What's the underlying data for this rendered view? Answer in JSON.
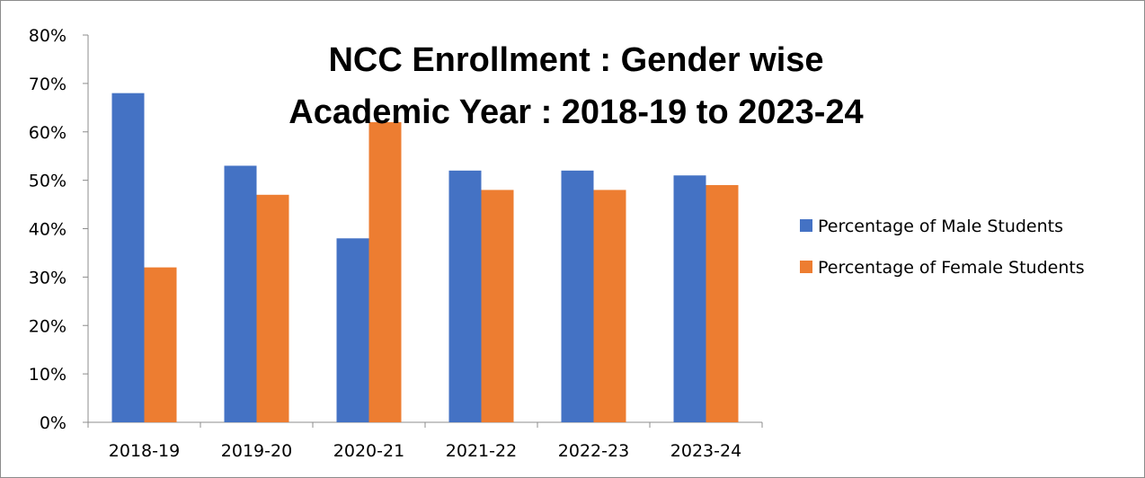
{
  "chart_data": {
    "type": "bar",
    "title_lines": [
      "NCC Enrollment : Gender wise",
      "Academic Year : 2018-19 to 2023-24"
    ],
    "categories": [
      "2018-19",
      "2019-20",
      "2020-21",
      "2021-22",
      "2022-23",
      "2023-24"
    ],
    "series": [
      {
        "name": "Percentage of Male Students",
        "color": "#4472C4",
        "values": [
          68,
          53,
          38,
          52,
          52,
          51
        ]
      },
      {
        "name": "Percentage of Female Students",
        "color": "#ED7D31",
        "values": [
          32,
          47,
          62,
          48,
          48,
          49
        ]
      }
    ],
    "y_ticks": [
      "0%",
      "10%",
      "20%",
      "30%",
      "40%",
      "50%",
      "60%",
      "70%",
      "80%"
    ],
    "ylim": [
      0,
      80
    ],
    "unit": "%",
    "grid": false,
    "legend_position": "right"
  }
}
